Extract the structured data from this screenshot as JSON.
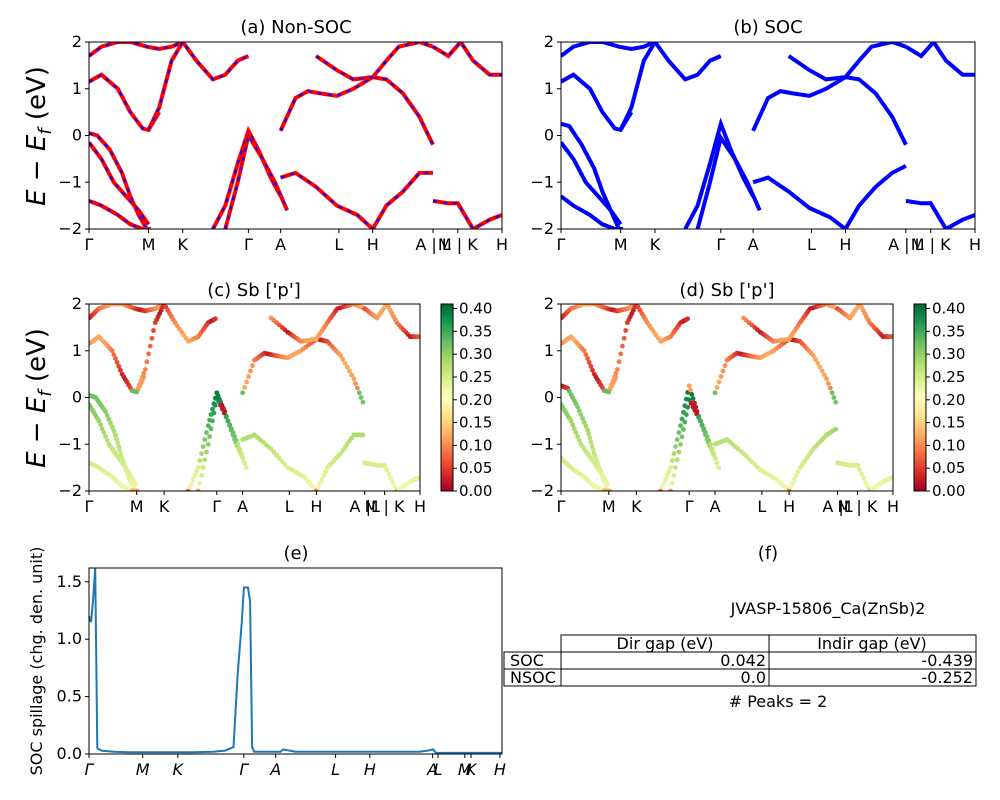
{
  "panels": {
    "a": {
      "title": "(a) Non-SOC"
    },
    "b": {
      "title": "(b) SOC"
    },
    "c": {
      "title": "(c)  Sb ['p']"
    },
    "d": {
      "title": "(d) Sb ['p']"
    },
    "e": {
      "title": "(e)"
    },
    "f": {
      "title": "(f)"
    }
  },
  "axis_labels": {
    "band_ylabel_prefix": "E − E",
    "band_ylabel_sub": "f",
    "band_ylabel_suffix": " (eV)",
    "spillage_ylabel": "SOC spillage (chg. den. unit)"
  },
  "kpath_labels": {
    "top": [
      "Γ",
      "M",
      "K",
      "Γ",
      "A",
      "L",
      "H",
      "A | L",
      "M | K",
      "H"
    ],
    "mid": [
      "Γ",
      "M",
      "K",
      "Γ",
      "A",
      "L",
      "H",
      "A |L",
      "M | K",
      "H"
    ],
    "bottom": [
      "Γ",
      "M",
      "K",
      "Γ",
      "A",
      "L",
      "H",
      "A",
      "L",
      "M",
      "K",
      "H"
    ]
  },
  "colorbar": {
    "ticks": [
      "0.00",
      "0.05",
      "0.10",
      "0.15",
      "0.20",
      "0.25",
      "0.30",
      "0.35",
      "0.40"
    ],
    "colors": [
      "#a50026",
      "#d73027",
      "#f46d43",
      "#fdae61",
      "#fee08b",
      "#ffffbf",
      "#d9ef8b",
      "#a6d96a",
      "#66bd63",
      "#1a9850",
      "#006837"
    ]
  },
  "colors": {
    "nonsoc_red": "#ff0000",
    "nonsoc_blue": "#0000ff",
    "soc_blue": "#0000ff",
    "spillage_line": "#1f77b4"
  },
  "info": {
    "material": "JVASP-15806_Ca(ZnSb)2",
    "table_headers": [
      "Dir gap (eV)",
      "Indir gap (eV)"
    ],
    "rows": [
      {
        "label": "SOC",
        "dir": "0.042",
        "indir": "-0.439"
      },
      {
        "label": "NSOC",
        "dir": "0.0",
        "indir": "-0.252"
      }
    ],
    "peaks": "# Peaks = 2"
  },
  "chart_data": [
    {
      "type": "line",
      "panel": "a",
      "title": "(a) Non-SOC",
      "ylabel": "E − E_f (eV)",
      "ylim": [
        -2,
        2
      ],
      "xlim": [
        0,
        1
      ],
      "x_ticks": [
        0,
        0.144,
        0.227,
        0.386,
        0.464,
        0.605,
        0.687,
        0.833,
        0.893,
        1.0
      ],
      "x_tick_labels": [
        "Γ",
        "M",
        "K",
        "Γ",
        "A",
        "L",
        "H",
        "A | L",
        "M | K",
        "H"
      ],
      "series": [
        {
          "x": [
            0,
            0.03,
            0.07,
            0.1,
            0.14,
            0.17,
            0.2,
            0.227
          ],
          "y": [
            1.7,
            1.9,
            2.0,
            2.0,
            1.9,
            1.85,
            1.9,
            2.0
          ]
        },
        {
          "x": [
            0,
            0.03,
            0.07,
            0.1,
            0.13,
            0.144,
            0.17
          ],
          "y": [
            1.15,
            1.3,
            1.0,
            0.5,
            0.15,
            0.12,
            0.5
          ]
        },
        {
          "x": [
            0.144,
            0.17,
            0.2,
            0.227,
            0.26,
            0.3,
            0.33,
            0.36,
            0.386
          ],
          "y": [
            0.12,
            0.6,
            1.6,
            2.0,
            1.6,
            1.2,
            1.3,
            1.6,
            1.7
          ]
        },
        {
          "x": [
            0,
            0.02,
            0.05,
            0.08,
            0.1,
            0.12,
            0.14
          ],
          "y": [
            0.05,
            0.0,
            -0.3,
            -0.8,
            -1.3,
            -1.7,
            -2.0
          ]
        },
        {
          "x": [
            0,
            0.03,
            0.06,
            0.09,
            0.12,
            0.144
          ],
          "y": [
            -0.15,
            -0.5,
            -1.0,
            -1.3,
            -1.6,
            -1.9
          ]
        },
        {
          "x": [
            0,
            0.03,
            0.07,
            0.1,
            0.13,
            0.15
          ],
          "y": [
            -1.4,
            -1.5,
            -1.7,
            -1.9,
            -2.0,
            -2.0
          ]
        },
        {
          "x": [
            0.3,
            0.33,
            0.36,
            0.386,
            0.41,
            0.44,
            0.464
          ],
          "y": [
            -2.0,
            -1.5,
            -0.6,
            0.1,
            -0.3,
            -0.9,
            -1.3
          ]
        },
        {
          "x": [
            0.33,
            0.36,
            0.386,
            0.42,
            0.45,
            0.48
          ],
          "y": [
            -2.0,
            -1.0,
            0.0,
            -0.5,
            -1.0,
            -1.6
          ]
        },
        {
          "x": [
            0.464,
            0.5,
            0.53,
            0.56,
            0.6,
            0.64,
            0.687,
            0.72,
            0.76,
            0.8,
            0.833
          ],
          "y": [
            0.1,
            0.8,
            0.95,
            0.9,
            0.85,
            1.0,
            1.25,
            1.2,
            0.9,
            0.4,
            -0.2
          ]
        },
        {
          "x": [
            0.464,
            0.5,
            0.55,
            0.6,
            0.65,
            0.687,
            0.72,
            0.76,
            0.8,
            0.833
          ],
          "y": [
            -0.9,
            -0.8,
            -1.1,
            -1.5,
            -1.7,
            -2.0,
            -1.5,
            -1.2,
            -0.8,
            -0.8
          ]
        },
        {
          "x": [
            0.55,
            0.6,
            0.64,
            0.687,
            0.72,
            0.75,
            0.8,
            0.833
          ],
          "y": [
            1.7,
            1.4,
            1.2,
            1.25,
            1.6,
            1.9,
            2.0,
            1.9
          ]
        },
        {
          "x": [
            0.833,
            0.87,
            0.893,
            0.93,
            0.97,
            1.0
          ],
          "y": [
            -1.4,
            -1.45,
            -1.45,
            -2.0,
            -1.8,
            -1.7
          ]
        },
        {
          "x": [
            0.833,
            0.87,
            0.9,
            0.93,
            0.97,
            1.0
          ],
          "y": [
            1.9,
            1.7,
            2.0,
            1.6,
            1.3,
            1.3
          ]
        }
      ]
    },
    {
      "type": "line",
      "panel": "b",
      "title": "(b) SOC",
      "ylim": [
        -2,
        2
      ],
      "xlim": [
        0,
        1
      ],
      "x_ticks": [
        0,
        0.144,
        0.227,
        0.386,
        0.464,
        0.605,
        0.687,
        0.833,
        0.893,
        1.0
      ],
      "x_tick_labels": [
        "Γ",
        "M",
        "K",
        "Γ",
        "A",
        "L",
        "H",
        "A | L",
        "M | K",
        "H"
      ],
      "series": [
        {
          "x": [
            0,
            0.03,
            0.07,
            0.1,
            0.14,
            0.17,
            0.2,
            0.227
          ],
          "y": [
            1.7,
            1.9,
            2.0,
            2.0,
            1.9,
            1.85,
            1.9,
            2.0
          ]
        },
        {
          "x": [
            0,
            0.03,
            0.07,
            0.1,
            0.13,
            0.144,
            0.17
          ],
          "y": [
            1.15,
            1.3,
            1.0,
            0.5,
            0.15,
            0.12,
            0.5
          ]
        },
        {
          "x": [
            0.144,
            0.17,
            0.2,
            0.227,
            0.26,
            0.3,
            0.33,
            0.36,
            0.386
          ],
          "y": [
            0.12,
            0.6,
            1.6,
            2.0,
            1.6,
            1.2,
            1.3,
            1.6,
            1.7
          ]
        },
        {
          "x": [
            0,
            0.02,
            0.05,
            0.08,
            0.1,
            0.12,
            0.14
          ],
          "y": [
            0.25,
            0.2,
            -0.2,
            -0.7,
            -1.2,
            -1.6,
            -2.0
          ]
        },
        {
          "x": [
            0,
            0.03,
            0.06,
            0.09,
            0.12,
            0.144
          ],
          "y": [
            -0.15,
            -0.5,
            -1.0,
            -1.3,
            -1.6,
            -1.9
          ]
        },
        {
          "x": [
            0,
            0.03,
            0.07,
            0.1,
            0.13,
            0.15
          ],
          "y": [
            -1.3,
            -1.5,
            -1.7,
            -1.9,
            -2.0,
            -2.0
          ]
        },
        {
          "x": [
            0.3,
            0.33,
            0.36,
            0.386,
            0.41,
            0.44,
            0.464
          ],
          "y": [
            -2.0,
            -1.5,
            -0.6,
            0.25,
            -0.3,
            -0.9,
            -1.3
          ]
        },
        {
          "x": [
            0.33,
            0.36,
            0.386,
            0.42,
            0.45,
            0.48
          ],
          "y": [
            -2.0,
            -1.0,
            -0.05,
            -0.5,
            -1.0,
            -1.6
          ]
        },
        {
          "x": [
            0.464,
            0.5,
            0.53,
            0.56,
            0.6,
            0.64,
            0.687,
            0.72,
            0.76,
            0.8,
            0.833
          ],
          "y": [
            0.1,
            0.8,
            0.95,
            0.9,
            0.85,
            1.0,
            1.25,
            1.2,
            0.9,
            0.4,
            -0.2
          ]
        },
        {
          "x": [
            0.464,
            0.5,
            0.55,
            0.6,
            0.65,
            0.687,
            0.72,
            0.76,
            0.8,
            0.833
          ],
          "y": [
            -1.0,
            -0.9,
            -1.2,
            -1.55,
            -1.75,
            -2.0,
            -1.5,
            -1.1,
            -0.8,
            -0.65
          ]
        },
        {
          "x": [
            0.55,
            0.6,
            0.64,
            0.687,
            0.72,
            0.75,
            0.8,
            0.833
          ],
          "y": [
            1.7,
            1.4,
            1.2,
            1.25,
            1.6,
            1.9,
            2.0,
            1.9
          ]
        },
        {
          "x": [
            0.833,
            0.87,
            0.893,
            0.93,
            0.97,
            1.0
          ],
          "y": [
            -1.4,
            -1.45,
            -1.45,
            -2.0,
            -1.8,
            -1.7
          ]
        },
        {
          "x": [
            0.833,
            0.87,
            0.9,
            0.93,
            0.97,
            1.0
          ],
          "y": [
            1.9,
            1.7,
            2.0,
            1.6,
            1.3,
            1.3
          ]
        }
      ]
    },
    {
      "type": "scatter",
      "panel": "c",
      "title": "(c)  Sb ['p']",
      "ylabel": "E − E_f (eV)",
      "ylim": [
        -2,
        2
      ],
      "colorbar_range": [
        0.0,
        0.41
      ],
      "series": [
        {
          "name": "valence",
          "x": [
            0,
            0.03,
            0.06,
            0.09,
            0.12,
            0.144,
            0.2,
            0.25,
            0.3,
            0.33,
            0.36,
            0.386,
            0.41,
            0.44,
            0.464,
            0.5,
            0.55,
            0.6,
            0.65,
            0.687,
            0.72,
            0.76,
            0.8,
            0.833
          ],
          "y": [
            0.05,
            -0.5,
            -1.0,
            -1.3,
            -1.6,
            -1.9,
            -1.9,
            -1.4,
            -1.0,
            -0.5,
            -0.1,
            0.05,
            -0.3,
            -0.9,
            -0.85,
            -0.9,
            -1.1,
            -1.3,
            -1.5,
            -1.6,
            -1.3,
            -1.0,
            -0.9,
            -0.8
          ],
          "weight": [
            0.35,
            0.3,
            0.3,
            0.28,
            0.25,
            0.22,
            0.22,
            0.3,
            0.32,
            0.35,
            0.38,
            0.4,
            0.35,
            0.3,
            0.28,
            0.27,
            0.27,
            0.26,
            0.26,
            0.25,
            0.27,
            0.3,
            0.3,
            0.3
          ]
        },
        {
          "name": "conduction",
          "x": [
            0,
            0.03,
            0.06,
            0.1,
            0.144,
            0.2,
            0.25,
            0.3,
            0.35,
            0.386,
            0.42,
            0.464,
            0.5,
            0.55,
            0.6,
            0.65,
            0.687,
            0.72,
            0.76,
            0.8,
            0.833
          ],
          "y": [
            1.2,
            1.3,
            0.9,
            0.4,
            0.15,
            1.5,
            1.9,
            1.4,
            1.5,
            1.7,
            -0.2,
            0.1,
            0.8,
            0.95,
            0.9,
            1.0,
            1.25,
            1.2,
            0.8,
            0.4,
            -0.2
          ],
          "weight": [
            0.02,
            0.03,
            0.05,
            0.05,
            0.02,
            0.05,
            0.1,
            0.05,
            0.12,
            0.05,
            0.0,
            0.1,
            0.05,
            0.08,
            0.05,
            0.1,
            0.15,
            0.12,
            0.05,
            0.03,
            0.02
          ]
        }
      ]
    },
    {
      "type": "scatter",
      "panel": "d",
      "title": "(d) Sb ['p']",
      "ylim": [
        -2,
        2
      ],
      "colorbar_range": [
        0.0,
        0.41
      ]
    },
    {
      "type": "line",
      "panel": "e",
      "title": "(e)",
      "ylabel": "SOC spillage (chg. den. unit)",
      "ylim": [
        0,
        1.62
      ],
      "y_ticks": [
        0.0,
        0.5,
        1.0,
        1.5
      ],
      "x_tick_labels": [
        "Γ",
        "M",
        "K",
        "Γ",
        "A",
        "L",
        "H",
        "A",
        "L",
        "M",
        "K",
        "H"
      ],
      "x": [
        0,
        0.005,
        0.01,
        0.015,
        0.02,
        0.03,
        0.06,
        0.1,
        0.15,
        0.2,
        0.25,
        0.3,
        0.33,
        0.35,
        0.36,
        0.37,
        0.375,
        0.385,
        0.39,
        0.395,
        0.4,
        0.45,
        0.464,
        0.47,
        0.5,
        0.6,
        0.7,
        0.8,
        0.82,
        0.833,
        0.84,
        0.9,
        1.0
      ],
      "y": [
        1.2,
        1.15,
        1.35,
        1.62,
        0.05,
        0.03,
        0.02,
        0.015,
        0.015,
        0.015,
        0.015,
        0.02,
        0.03,
        0.06,
        0.7,
        1.15,
        1.45,
        1.45,
        1.33,
        0.06,
        0.02,
        0.02,
        0.02,
        0.04,
        0.02,
        0.02,
        0.02,
        0.02,
        0.03,
        0.04,
        0.01,
        0.01,
        0.01
      ]
    }
  ]
}
